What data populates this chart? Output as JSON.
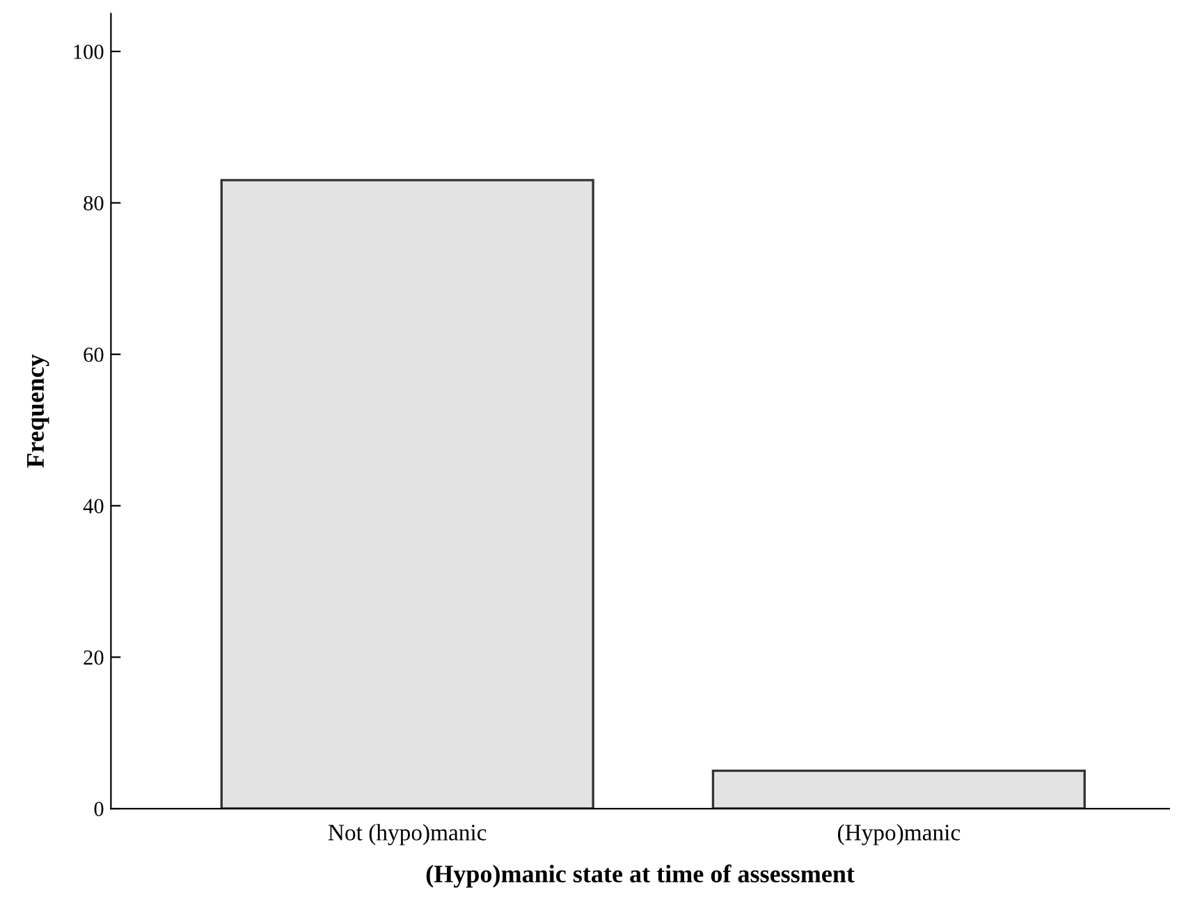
{
  "chart_data": {
    "type": "bar",
    "xlabel": "(Hypo)manic state at time of assessment",
    "ylabel": "Frequency",
    "categories": [
      "Not (hypo)manic",
      "(Hypo)manic"
    ],
    "values": [
      83,
      5
    ],
    "color": "#e3e3e3",
    "ylim": [
      0,
      105
    ],
    "yticks": [
      0,
      20,
      40,
      60,
      80,
      100
    ],
    "grid": false,
    "legend": false
  }
}
